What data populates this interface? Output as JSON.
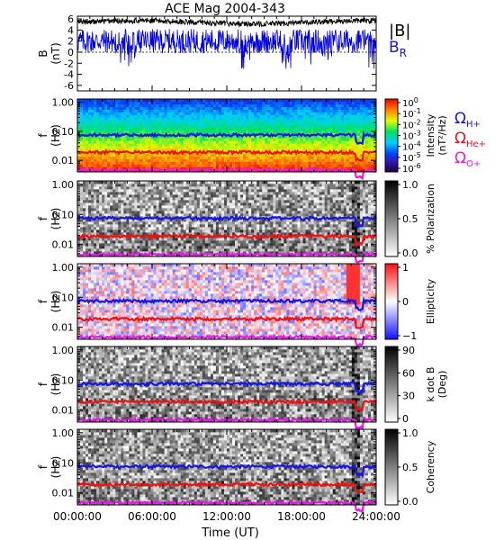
{
  "chart_data": {
    "title": "ACE Mag 2004-343",
    "xlabel": "Time (UT)",
    "x_ticks": [
      "00:00:00",
      "06:00:00",
      "12:00:00",
      "18:00:00",
      "24:00:00"
    ],
    "x_range_hours": [
      0,
      24
    ],
    "panels": [
      {
        "type": "line",
        "ylabel": "B",
        "yunit": "(nT)",
        "ylim": [
          -7,
          6.5
        ],
        "yticks": [
          6,
          4,
          2,
          0,
          -2,
          -4,
          -6
        ],
        "series": [
          {
            "name": "|B|",
            "color": "#000000",
            "mean": 5.4,
            "noise": 0.5
          },
          {
            "name": "BR",
            "color": "#0000dd",
            "mean": 2.0,
            "noise": 2.2
          }
        ]
      },
      {
        "type": "heatmap",
        "ylabel": "f",
        "yunit": "(Hz)",
        "yscale": "log",
        "ylim": [
          0.004,
          1.3
        ],
        "yticks": [
          "1.00",
          "0.10",
          "0.01"
        ],
        "colorbar": {
          "label": "Intensity",
          "unit": "(nT²/Hz)",
          "scale": "rainbow",
          "tick_base": "10",
          "tick_exponents": [
            "0",
            "-1",
            "-2",
            "-3",
            "-4",
            "-5",
            "-6"
          ]
        },
        "gyro_lines": true
      },
      {
        "type": "heatmap",
        "ylabel": "f",
        "yunit": "(Hz)",
        "yscale": "log",
        "ylim": [
          0.004,
          1.3
        ],
        "yticks": [
          "1.00",
          "0.10",
          "0.01"
        ],
        "colorbar": {
          "label": "% Polarization",
          "scale": "grey",
          "ticks": [
            "1.0",
            "0.5",
            "0.0"
          ]
        },
        "gyro_lines": true
      },
      {
        "type": "heatmap",
        "ylabel": "f",
        "yunit": "(Hz)",
        "yscale": "log",
        "ylim": [
          0.004,
          1.3
        ],
        "yticks": [
          "1.00",
          "0.10",
          "0.01"
        ],
        "colorbar": {
          "label": "Ellipticity",
          "scale": "bwr",
          "ticks": [
            "1",
            "0",
            "−1"
          ]
        },
        "gyro_lines": true
      },
      {
        "type": "heatmap",
        "ylabel": "f",
        "yunit": "(Hz)",
        "yscale": "log",
        "ylim": [
          0.004,
          1.3
        ],
        "yticks": [
          "1.00",
          "0.10",
          "0.01"
        ],
        "colorbar": {
          "label": "k dot B",
          "unit": "(Deg)",
          "scale": "grey",
          "ticks": [
            "90",
            "60",
            "30",
            "0"
          ]
        },
        "gyro_lines": true
      },
      {
        "type": "heatmap",
        "ylabel": "f",
        "yunit": "(Hz)",
        "yscale": "log",
        "ylim": [
          0.004,
          1.3
        ],
        "yticks": [
          "1.00",
          "0.10",
          "0.01"
        ],
        "colorbar": {
          "label": "Coherency",
          "scale": "grey",
          "ticks": [
            "1.0",
            "0.5",
            "0.0"
          ]
        },
        "gyro_lines": true
      }
    ],
    "gyrofrequency_lines": [
      {
        "label_base": "Ω",
        "label_sub": "H+",
        "color": "#1515e6",
        "freq_hz": 0.075
      },
      {
        "label_base": "Ω",
        "label_sub": "He+",
        "color": "#ee1111",
        "freq_hz": 0.019
      },
      {
        "label_base": "Ω",
        "label_sub": "O+",
        "color": "#e619e6",
        "freq_hz": 0.0047
      }
    ],
    "legend_top": {
      "absB": "|B|",
      "br_base": "B",
      "br_sub": "R"
    }
  }
}
